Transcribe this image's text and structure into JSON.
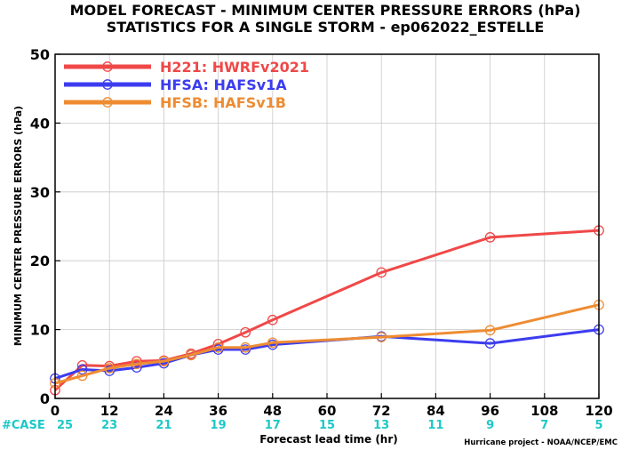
{
  "chart_data": {
    "type": "line",
    "title_line1": "MODEL FORECAST - MINIMUM CENTER PRESSURE ERRORS (hPa)",
    "title_line2": "STATISTICS FOR A SINGLE STORM - ep062022_ESTELLE",
    "ylabel": "MINIMUM CENTER PRESSURE ERRORS (hPa)",
    "xlabel": "Forecast lead time (hr)",
    "xlim": [
      0,
      120
    ],
    "ylim": [
      0,
      50
    ],
    "x_ticks": [
      0,
      12,
      24,
      36,
      48,
      60,
      72,
      84,
      96,
      108,
      120
    ],
    "y_ticks": [
      0,
      10,
      20,
      30,
      40,
      50
    ],
    "legend_position": "top-left",
    "series": [
      {
        "name": "H221: HWRFv2021",
        "color": "#f04848",
        "x": [
          0,
          6,
          12,
          18,
          24,
          30,
          36,
          42,
          48,
          72,
          96,
          120
        ],
        "values": [
          1.2,
          4.8,
          4.7,
          5.4,
          5.5,
          6.5,
          7.9,
          9.6,
          11.4,
          18.3,
          23.4,
          24.4
        ]
      },
      {
        "name": "HFSA: HAFSv1A",
        "color": "#3c3cf0",
        "x": [
          0,
          6,
          12,
          18,
          24,
          30,
          36,
          42,
          48,
          72,
          96,
          120
        ],
        "values": [
          2.9,
          4.2,
          4.0,
          4.5,
          5.1,
          6.3,
          7.1,
          7.1,
          7.8,
          9.0,
          8.0,
          10.0
        ]
      },
      {
        "name": "HFSB: HAFSv1B",
        "color": "#ee8c32",
        "x": [
          0,
          6,
          12,
          18,
          24,
          30,
          36,
          42,
          48,
          72,
          96,
          120
        ],
        "values": [
          2.2,
          3.3,
          4.4,
          5.0,
          5.4,
          6.3,
          7.4,
          7.4,
          8.1,
          8.9,
          9.9,
          13.6
        ]
      }
    ],
    "cases_label": "#CASE",
    "cases_color": "#1cc8c8",
    "cases_x": [
      0,
      12,
      24,
      36,
      48,
      60,
      72,
      84,
      96,
      108,
      120
    ],
    "cases": [
      "25",
      "23",
      "21",
      "19",
      "17",
      "15",
      "13",
      "11",
      "9",
      "7",
      "5"
    ],
    "credit": "Hurricane project - NOAA/NCEP/EMC"
  }
}
